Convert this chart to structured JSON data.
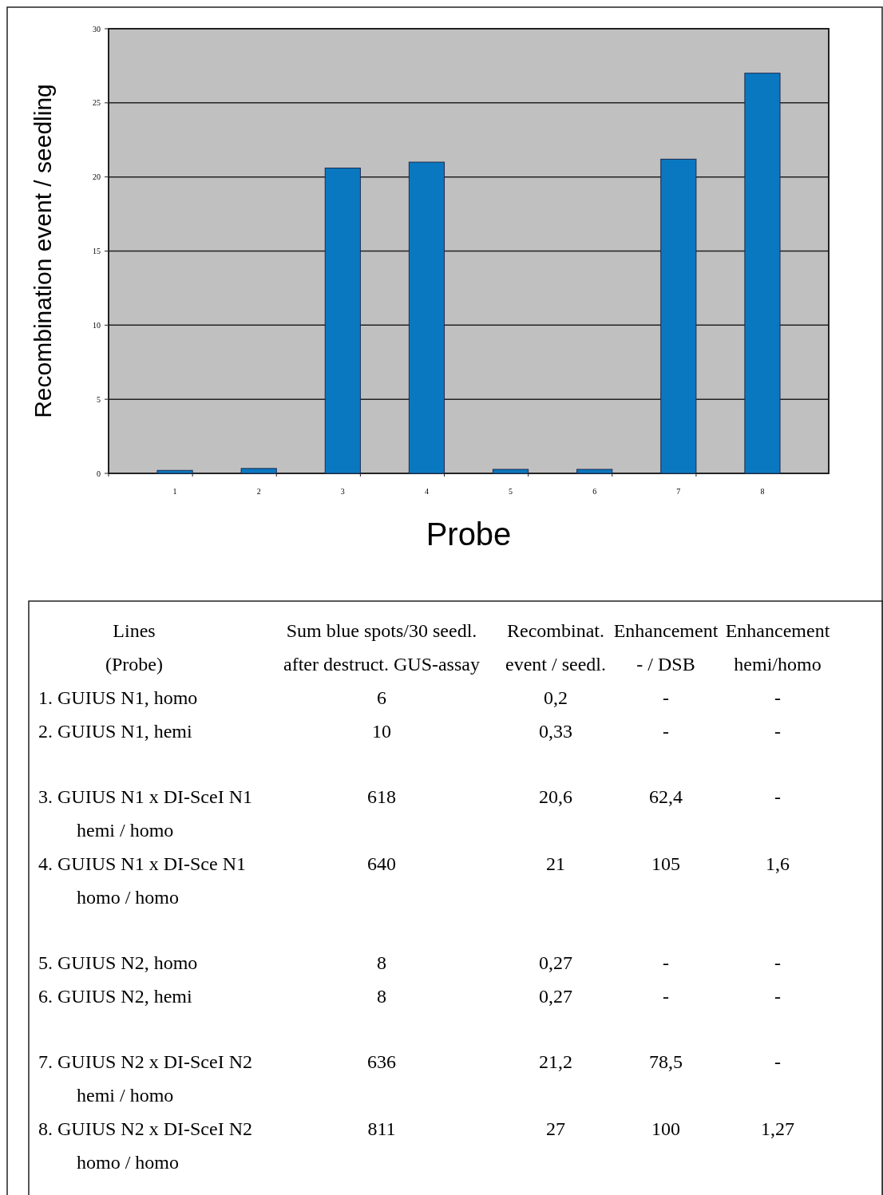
{
  "chart_data": [
    {
      "type": "bar",
      "xlabel": "Probe",
      "ylabel": "Recombination event / seedling",
      "categories": [
        "1",
        "2",
        "3",
        "4",
        "5",
        "6",
        "7",
        "8"
      ],
      "values": [
        0.2,
        0.33,
        20.6,
        21,
        0.27,
        0.27,
        21.2,
        27
      ],
      "color": "#0a78c0",
      "ylim": [
        0,
        30
      ],
      "yticks": [
        0,
        5,
        10,
        15,
        20,
        25,
        30
      ],
      "grid": "y"
    },
    {
      "type": "other",
      "annotations": [
        "Lines\n(Probe)",
        "Sum blue spots/30 seedl.\nafter destruct. GUS-assay",
        "Recombinat.\nevent / seedl.",
        "Enhancement\n- / DSB",
        "Enhancement\nhemi/homo",
        "1. GUIUS N1, homo",
        "6",
        "0,2",
        "-",
        "-",
        "2. GUIUS N1, hemi",
        "10",
        "0,33",
        "-",
        "-",
        "3. GUIUS N1 x DI-SceI N1\n        hemi / homo",
        "618",
        "20,6",
        "62,4",
        "-",
        "4. GUIUS N1 x DI-Sce N1\n        homo / homo",
        "640",
        "21",
        "105",
        "1,6",
        "5. GUIUS N2, homo",
        "8",
        "0,27",
        "-",
        "-",
        "6. GUIUS N2, hemi",
        "8",
        "0,27",
        "-",
        "-",
        "7. GUIUS N2 x DI-SceI N2\n        hemi / homo",
        "636",
        "21,2",
        "78,5",
        "-",
        "8. GUIUS N2 x DI-SceI N2\n        homo / homo",
        "811",
        "27",
        "100",
        "1,27"
      ]
    }
  ]
}
